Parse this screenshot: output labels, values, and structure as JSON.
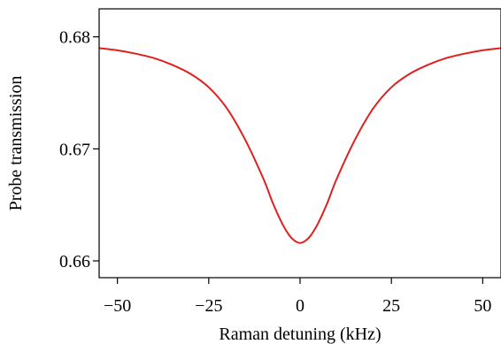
{
  "chart_data": {
    "type": "line",
    "title": "",
    "xlabel": "Raman detuning (kHz)",
    "ylabel": "Probe transmission",
    "xlim": [
      -55,
      55
    ],
    "ylim": [
      0.6585,
      0.6825
    ],
    "x_ticks": [
      -50,
      -25,
      0,
      25,
      50
    ],
    "x_tick_labels": [
      "−50",
      "−25",
      "0",
      "25",
      "50"
    ],
    "y_ticks": [
      0.66,
      0.67,
      0.68
    ],
    "y_tick_labels": [
      "0.66",
      "0.67",
      "0.68"
    ],
    "grid": false,
    "colors": {
      "line": "#e0201e",
      "axis": "#000000"
    },
    "series": [
      {
        "x": [
          -55,
          -50,
          -45,
          -40,
          -35,
          -30,
          -25,
          -20,
          -15,
          -10,
          -7.5,
          -5,
          -3,
          -1.5,
          0,
          1.5,
          3,
          5,
          7.5,
          10,
          15,
          20,
          25,
          30,
          35,
          40,
          45,
          50,
          55
        ],
        "values": [
          0.679,
          0.6788,
          0.6785,
          0.6781,
          0.6775,
          0.6767,
          0.6755,
          0.6736,
          0.6708,
          0.6673,
          0.6652,
          0.6634,
          0.6623,
          0.6618,
          0.6616,
          0.6618,
          0.6623,
          0.6634,
          0.6652,
          0.6673,
          0.6708,
          0.6736,
          0.6755,
          0.6767,
          0.6775,
          0.6781,
          0.6785,
          0.6788,
          0.679
        ]
      }
    ]
  }
}
